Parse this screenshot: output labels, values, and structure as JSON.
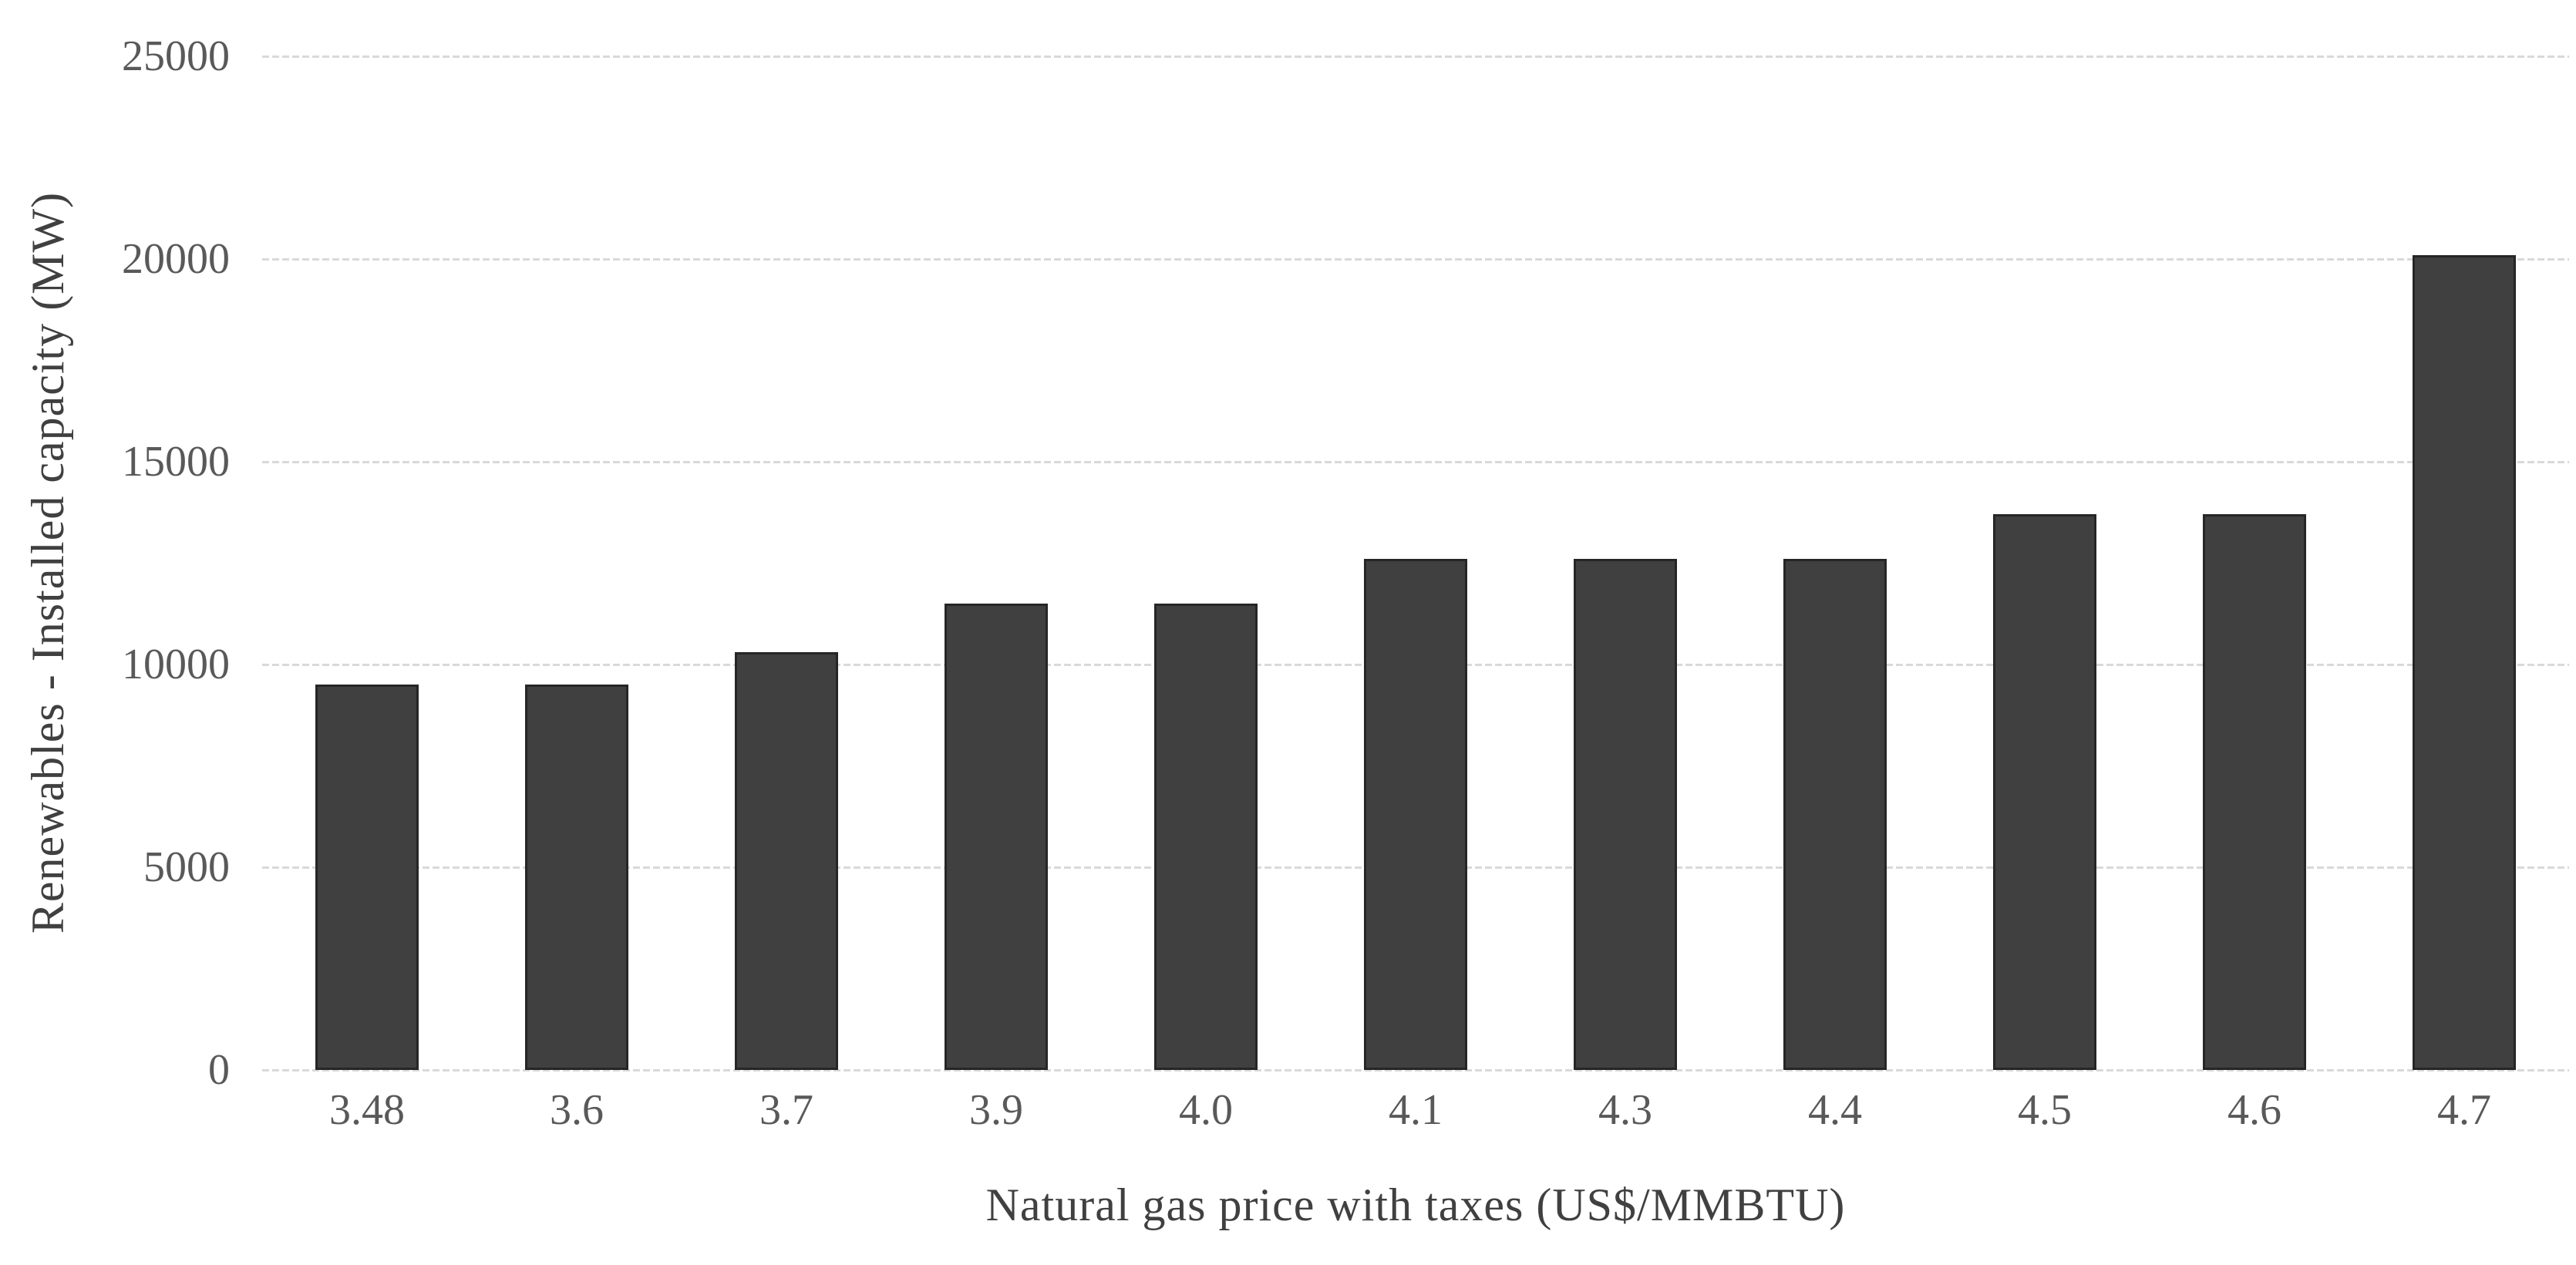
{
  "chart_data": {
    "type": "bar",
    "categories": [
      "3.48",
      "3.6",
      "3.7",
      "3.9",
      "4.0",
      "4.1",
      "4.3",
      "4.4",
      "4.5",
      "4.6",
      "4.7"
    ],
    "values": [
      9500,
      9500,
      10300,
      11500,
      11500,
      12600,
      12600,
      12600,
      13700,
      13700,
      20100
    ],
    "title": "",
    "xlabel": "Natural gas price with taxes (US$/MMBTU)",
    "ylabel": "Renewables - Installed capacity (MW)",
    "ylim": [
      0,
      25000
    ],
    "yticks": [
      0,
      5000,
      10000,
      15000,
      20000,
      25000
    ],
    "ytick_labels": [
      "0",
      "5000",
      "10000",
      "15000",
      "20000",
      "25000"
    ],
    "grid": true,
    "legend_position": "none",
    "colors": {
      "bar_fill": "#404040",
      "bar_border": "#262626",
      "gridline": "#d9d9d9",
      "tick_label": "#595959",
      "axis_title": "#404040",
      "background": "#ffffff"
    }
  }
}
